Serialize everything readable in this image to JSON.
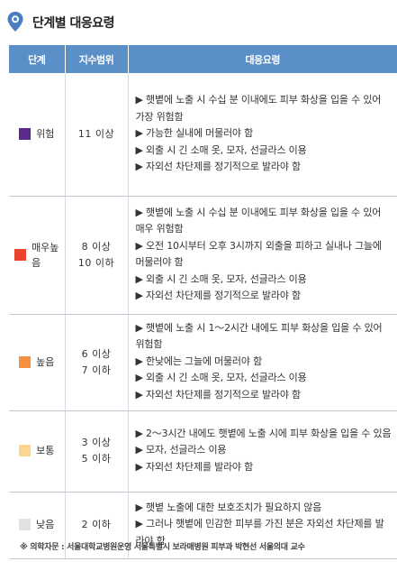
{
  "header": {
    "title": "단계별 대응요령",
    "icon": "map-pin-icon",
    "icon_color": "#4a7ec0"
  },
  "table": {
    "columns": [
      "단계",
      "지수범위",
      "대응요령"
    ],
    "header_bg": "#5b8fc7",
    "rows": [
      {
        "level_lines": [
          "위험"
        ],
        "color": "#5c2a8c",
        "range_lines": [
          "11 이상"
        ],
        "actions": [
          "▶ 햇볕에 노출 시 수십 분 이내에도 피부 화상을 입을 수 있어 가장 위험함",
          "▶ 가능한 실내에 머물러야 함",
          "▶ 외출 시 긴 소매 옷, 모자, 선글라스 이용",
          "▶ 자외선 차단제를 정기적으로 발라야 함"
        ]
      },
      {
        "level_lines": [
          "매우높",
          "음"
        ],
        "color": "#e8452c",
        "range_lines": [
          "8 이상",
          "10 이하"
        ],
        "actions": [
          "▶ 햇볕에 노출 시 수십 분 이내에도 피부 화상을 입을 수 있어 매우 위험함",
          "▶ 오전 10시부터 오후 3시까지 외출을 피하고 실내나 그늘에 머물러야 함",
          "▶ 외출 시 긴 소매 옷, 모자, 선글라스 이용",
          "▶ 자외선 차단제를 정기적으로 발라야 함"
        ]
      },
      {
        "level_lines": [
          "높음"
        ],
        "color": "#f59040",
        "range_lines": [
          "6 이상",
          "7 이하"
        ],
        "actions": [
          "▶ 햇볕에 노출 시 1～2시간 내에도 피부 화상을 입을 수 있어 위험함",
          "▶ 한낮에는 그늘에 머물러야 함",
          "▶ 외출 시 긴 소매 옷, 모자, 선글라스 이용",
          "▶ 자외선 차단제를 정기적으로 발라야 함"
        ]
      },
      {
        "level_lines": [
          "보통"
        ],
        "color": "#fcd690",
        "range_lines": [
          "3 이상",
          "5 이하"
        ],
        "actions": [
          "▶ 2～3시간 내에도 햇볕에 노출 시에 피부 화상을 입을 수 있음",
          "▶ 모자, 선글라스 이용",
          "▶ 자외선 차단제를 발라야 함"
        ]
      },
      {
        "level_lines": [
          "낮음"
        ],
        "color": "#e2e2e2",
        "range_lines": [
          "2 이하"
        ],
        "actions": [
          "▶ 햇볕 노출에 대한 보호조치가 필요하지 않음",
          "▶ 그러나 햇볕에 민감한 피부를 가진 분은 자외선 차단제를 발라야 함"
        ]
      }
    ]
  },
  "footnote": {
    "label": "※ 의학자문 : ",
    "text": "서울대학교병원운영 서울특별시 보라매병원 피부과 박현선 서울의대 교수"
  }
}
